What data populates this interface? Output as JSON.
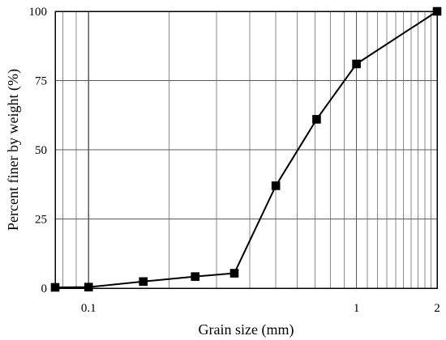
{
  "chart_data": {
    "type": "line",
    "title": "",
    "xlabel": "Grain size (mm)",
    "ylabel": "Percent finer by weight (%)",
    "x_scale": "log",
    "xlim": [
      0.075,
      2
    ],
    "ylim": [
      0,
      100
    ],
    "grid": true,
    "legend": "none",
    "x_ticks": [
      {
        "value": 0.1,
        "label": "0.1"
      },
      {
        "value": 1,
        "label": "1"
      },
      {
        "value": 2,
        "label": "2"
      }
    ],
    "y_ticks": [
      {
        "value": 0,
        "label": "0"
      },
      {
        "value": 25,
        "label": "25"
      },
      {
        "value": 50,
        "label": "50"
      },
      {
        "value": 75,
        "label": "75"
      },
      {
        "value": 100,
        "label": "100"
      }
    ],
    "series": [
      {
        "points": [
          {
            "x": 0.075,
            "y": 0.3
          },
          {
            "x": 0.1,
            "y": 0.4
          },
          {
            "x": 0.16,
            "y": 2.4
          },
          {
            "x": 0.25,
            "y": 4.2
          },
          {
            "x": 0.35,
            "y": 5.4
          },
          {
            "x": 0.5,
            "y": 37
          },
          {
            "x": 0.71,
            "y": 61
          },
          {
            "x": 1.0,
            "y": 81
          },
          {
            "x": 2.0,
            "y": 100
          }
        ],
        "marker": "square",
        "color": "#000000"
      }
    ]
  }
}
